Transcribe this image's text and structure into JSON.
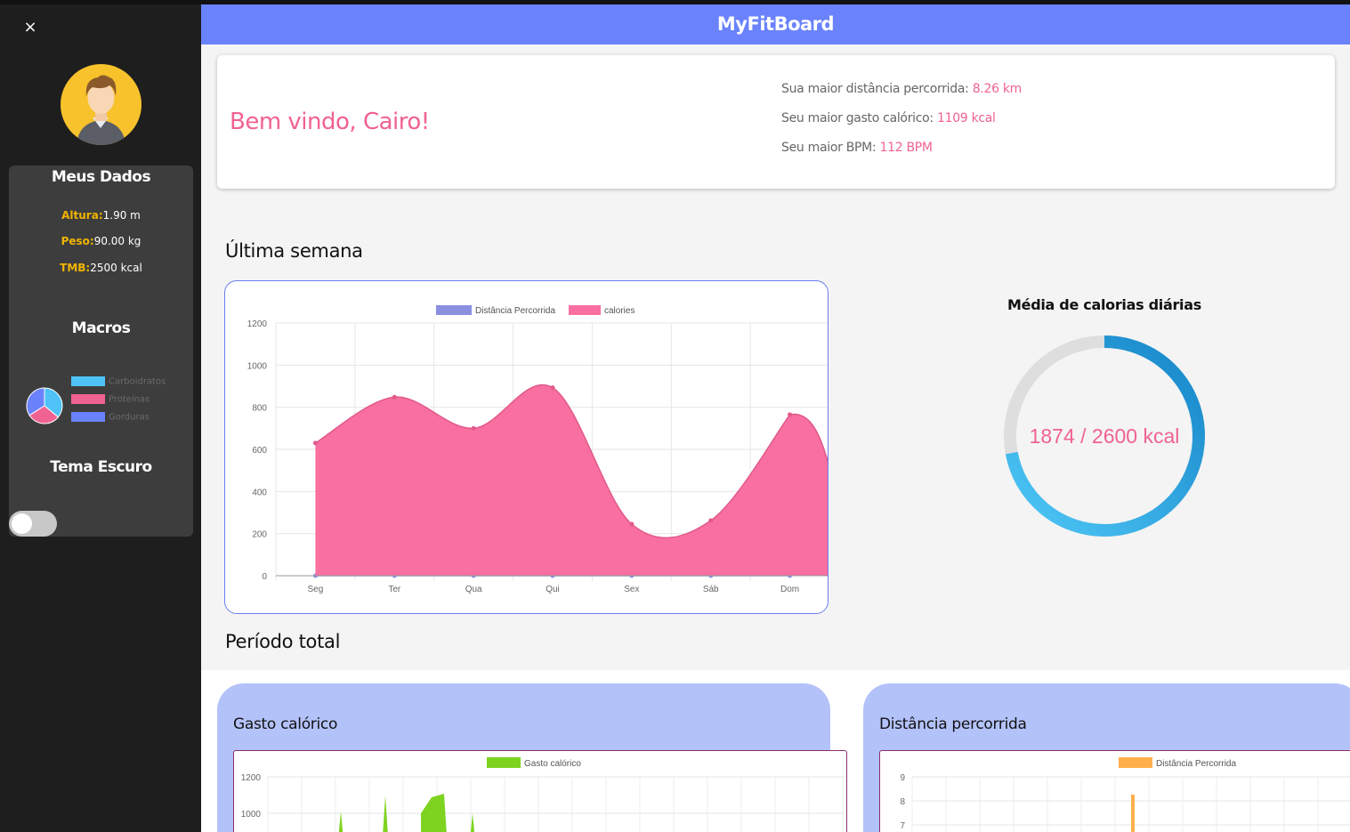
{
  "app": {
    "title": "MyFitBoard"
  },
  "sidebar": {
    "close_icon": "×",
    "my_data_title": "Meus Dados",
    "height_label": "Altura:",
    "height_value": "1.90 m",
    "weight_label": "Peso:",
    "weight_value": "90.00 kg",
    "tmb_label": "TMB:",
    "tmb_value": "2500 kcal",
    "macros_title": "Macros",
    "macros_legend": [
      {
        "label": "Carboidratos",
        "color": "#4fc3f7"
      },
      {
        "label": "Proteínas",
        "color": "#f06292"
      },
      {
        "label": "Gorduras",
        "color": "#6a82fb"
      }
    ],
    "macros_share": [
      0.36,
      0.3,
      0.34
    ],
    "dark_theme_title": "Tema Escuro",
    "dark_theme_enabled": false
  },
  "welcome": {
    "greeting": "Bem vindo, Cairo!",
    "max_distance_label": "Sua maior distância percorrida:",
    "max_distance_value": "8.26 km",
    "max_calories_label": "Seu maior gasto calórico:",
    "max_calories_value": "1109 kcal",
    "max_bpm_label": "Seu maior BPM:",
    "max_bpm_value": "112 BPM"
  },
  "week": {
    "section_title": "Última semana",
    "donut_title": "Média de calorias diárias",
    "donut_text": "1874 / 2600 kcal",
    "donut_current": 1874,
    "donut_target": 2600
  },
  "total": {
    "section_title": "Período total",
    "calories_card_title": "Gasto calórico",
    "distance_card_title": "Distância percorrida"
  },
  "chart_data": [
    {
      "type": "area",
      "categories": [
        "Seg",
        "Ter",
        "Qua",
        "Qui",
        "Sex",
        "Sáb",
        "Dom"
      ],
      "series": [
        {
          "name": "Distância Percorrida",
          "color": "#8a8fe0",
          "values": [
            0,
            0,
            0,
            0,
            0,
            0,
            0
          ]
        },
        {
          "name": "calories",
          "color": "#f86fa0",
          "values": [
            630,
            848,
            700,
            893,
            245,
            262,
            765
          ]
        }
      ],
      "ylim": [
        0,
        1200
      ],
      "yticks": [
        0,
        200,
        400,
        600,
        800,
        1000,
        1200
      ],
      "legend": "top-center",
      "grid": true
    },
    {
      "type": "area",
      "series": [
        {
          "name": "Gasto calórico",
          "color": "#7ed321"
        }
      ],
      "yticks": [
        1000,
        1200
      ],
      "legend": "top-center",
      "grid": true
    },
    {
      "type": "bar",
      "series": [
        {
          "name": "Distância Percorrida",
          "color": "#ffb04d"
        }
      ],
      "yticks": [
        7,
        8,
        9
      ],
      "legend": "top-center",
      "grid": true
    }
  ]
}
